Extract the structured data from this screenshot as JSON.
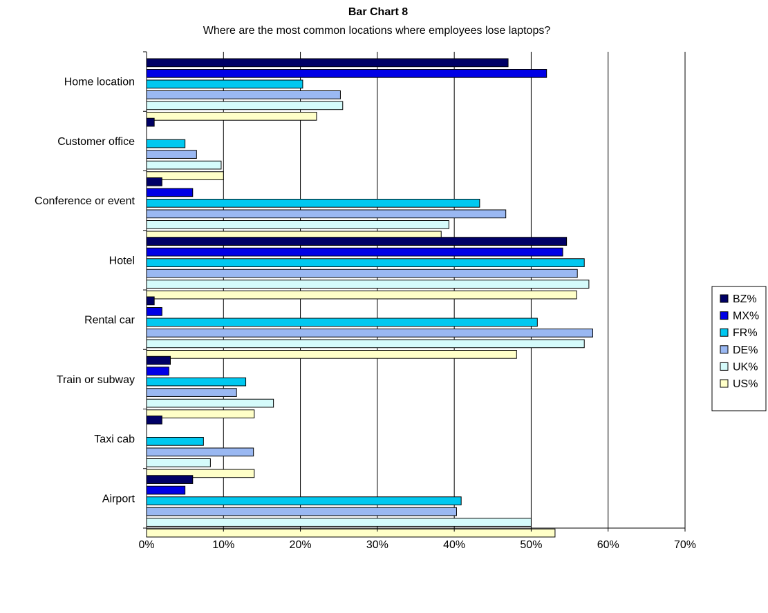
{
  "chart_data": {
    "type": "bar",
    "orientation": "horizontal",
    "title": "Bar Chart 8",
    "subtitle": "Where are the most common locations where employees lose laptops?",
    "categories": [
      "Home location",
      "Customer office",
      "Conference or event",
      "Hotel",
      "Rental car",
      "Train or subway",
      "Taxi cab",
      "Airport"
    ],
    "series": [
      {
        "name": "BZ%",
        "color": "#000066",
        "values": [
          47,
          1,
          2,
          54.6,
          1,
          3.1,
          2,
          6
        ]
      },
      {
        "name": "MX%",
        "color": "#0000e6",
        "values": [
          52,
          0,
          6,
          54.1,
          2,
          2.9,
          0,
          5
        ]
      },
      {
        "name": "FR%",
        "color": "#00c8f0",
        "values": [
          20.3,
          5,
          43.3,
          56.9,
          50.8,
          12.9,
          7.4,
          40.9
        ]
      },
      {
        "name": "DE%",
        "color": "#9ab8f2",
        "values": [
          25.2,
          6.5,
          46.7,
          56,
          58,
          11.7,
          13.9,
          40.3
        ]
      },
      {
        "name": "UK%",
        "color": "#d5fbfb",
        "values": [
          25.5,
          9.7,
          39.3,
          57.5,
          56.9,
          16.5,
          8.3,
          50
        ]
      },
      {
        "name": "US%",
        "color": "#ffffc8",
        "values": [
          22.1,
          10,
          38.3,
          55.9,
          48.1,
          14,
          14,
          53.1
        ]
      }
    ],
    "xlim": [
      0,
      70
    ],
    "xticks": [
      "0%",
      "10%",
      "20%",
      "30%",
      "40%",
      "50%",
      "60%",
      "70%"
    ],
    "grid": true,
    "legend_position": "right"
  }
}
